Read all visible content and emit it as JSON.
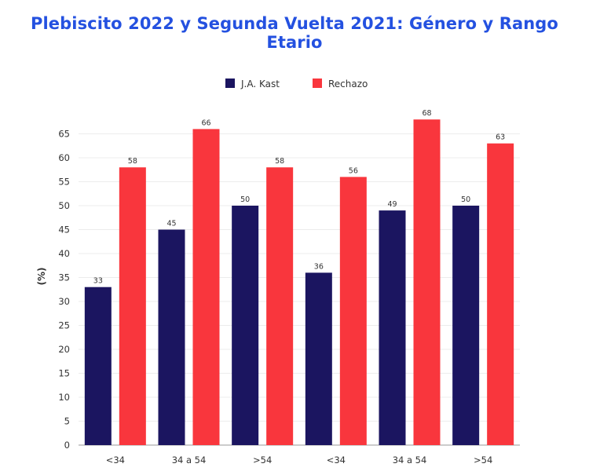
{
  "chart_data": {
    "type": "bar",
    "title": "Plebiscito 2022 y Segunda Vuelta 2021: Género y Rango Etario",
    "ylabel": "(%)",
    "xlabel": "",
    "ylim": [
      0,
      70
    ],
    "yticks": [
      0,
      5,
      10,
      15,
      20,
      25,
      30,
      35,
      40,
      45,
      50,
      55,
      60,
      65
    ],
    "grid": true,
    "legend_position": "top-center",
    "categories": [
      "<34",
      "34 a 54",
      ">54",
      "<34",
      "34 a 54",
      ">54"
    ],
    "series": [
      {
        "name": "J.A. Kast",
        "color": "#1b1560",
        "values": [
          33,
          45,
          50,
          36,
          49,
          50
        ]
      },
      {
        "name": "Rechazo",
        "color": "#f9363d",
        "values": [
          58,
          66,
          58,
          56,
          68,
          63
        ]
      }
    ]
  }
}
